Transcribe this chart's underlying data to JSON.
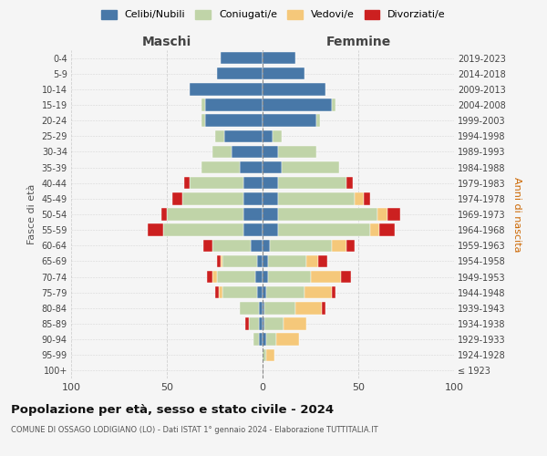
{
  "age_groups": [
    "100+",
    "95-99",
    "90-94",
    "85-89",
    "80-84",
    "75-79",
    "70-74",
    "65-69",
    "60-64",
    "55-59",
    "50-54",
    "45-49",
    "40-44",
    "35-39",
    "30-34",
    "25-29",
    "20-24",
    "15-19",
    "10-14",
    "5-9",
    "0-4"
  ],
  "birth_years": [
    "≤ 1923",
    "1924-1928",
    "1929-1933",
    "1934-1938",
    "1939-1943",
    "1944-1948",
    "1949-1953",
    "1954-1958",
    "1959-1963",
    "1964-1968",
    "1969-1973",
    "1974-1978",
    "1979-1983",
    "1984-1988",
    "1989-1993",
    "1994-1998",
    "1999-2003",
    "2004-2008",
    "2009-2013",
    "2014-2018",
    "2019-2023"
  ],
  "colors": {
    "celibi": "#4878a8",
    "coniugati": "#c0d4a8",
    "vedovi": "#f5c87a",
    "divorziati": "#cc2020"
  },
  "maschi": {
    "celibi": [
      0,
      0,
      2,
      2,
      2,
      3,
      4,
      3,
      6,
      10,
      10,
      10,
      10,
      12,
      16,
      20,
      30,
      30,
      38,
      24,
      22
    ],
    "coniugati": [
      0,
      0,
      3,
      5,
      10,
      18,
      20,
      18,
      20,
      42,
      40,
      32,
      28,
      20,
      10,
      5,
      2,
      2,
      0,
      0,
      0
    ],
    "vedovi": [
      0,
      0,
      0,
      0,
      0,
      2,
      2,
      1,
      0,
      0,
      0,
      0,
      0,
      0,
      0,
      0,
      0,
      0,
      0,
      0,
      0
    ],
    "divorziati": [
      0,
      0,
      0,
      2,
      0,
      2,
      3,
      2,
      5,
      8,
      3,
      5,
      3,
      0,
      0,
      0,
      0,
      0,
      0,
      0,
      0
    ]
  },
  "femmine": {
    "celibi": [
      0,
      0,
      2,
      1,
      1,
      2,
      3,
      3,
      4,
      8,
      8,
      8,
      8,
      10,
      8,
      5,
      28,
      36,
      33,
      22,
      17
    ],
    "coniugati": [
      0,
      2,
      5,
      10,
      16,
      20,
      22,
      20,
      32,
      48,
      52,
      40,
      36,
      30,
      20,
      5,
      2,
      2,
      0,
      0,
      0
    ],
    "vedovi": [
      0,
      4,
      12,
      12,
      14,
      14,
      16,
      6,
      8,
      5,
      5,
      5,
      0,
      0,
      0,
      0,
      0,
      0,
      0,
      0,
      0
    ],
    "divorziati": [
      0,
      0,
      0,
      0,
      2,
      2,
      5,
      5,
      4,
      8,
      7,
      3,
      3,
      0,
      0,
      0,
      0,
      0,
      0,
      0,
      0
    ]
  },
  "xlim": 100,
  "title": "Popolazione per età, sesso e stato civile - 2024",
  "subtitle": "COMUNE DI OSSAGO LODIGIANO (LO) - Dati ISTAT 1° gennaio 2024 - Elaborazione TUTTITALIA.IT",
  "ylabel_left": "Fasce di età",
  "ylabel_right": "Anni di nascita",
  "xlabel_maschi": "Maschi",
  "xlabel_femmine": "Femmine",
  "bg_color": "#f5f5f5",
  "grid_color": "#cccccc"
}
